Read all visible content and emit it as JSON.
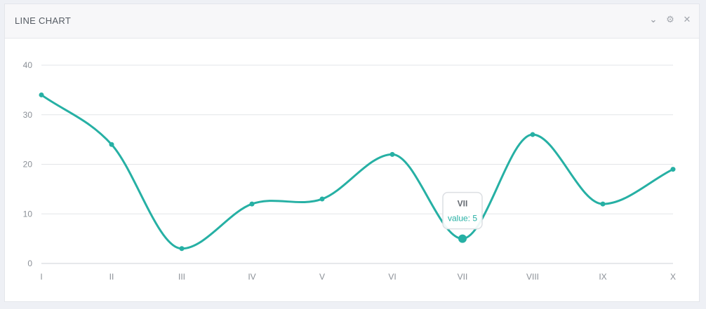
{
  "panel": {
    "title": "LINE CHART",
    "tools": [
      {
        "icon": "chevron-down-icon",
        "glyph": "⌄"
      },
      {
        "icon": "gear-icon",
        "glyph": "⚙"
      },
      {
        "icon": "close-icon",
        "glyph": "✕"
      }
    ]
  },
  "chart_data": {
    "type": "line",
    "categories": [
      "I",
      "II",
      "III",
      "IV",
      "V",
      "VI",
      "VII",
      "VIII",
      "IX",
      "X"
    ],
    "values": [
      34,
      24,
      3,
      12,
      13,
      22,
      5,
      26,
      12,
      19
    ],
    "ylim": [
      0,
      40
    ],
    "yticks": [
      0,
      10,
      20,
      30,
      40
    ],
    "grid": true,
    "color": "#26b0a4",
    "tooltip": {
      "category": "VII",
      "label": "value: 5"
    }
  }
}
